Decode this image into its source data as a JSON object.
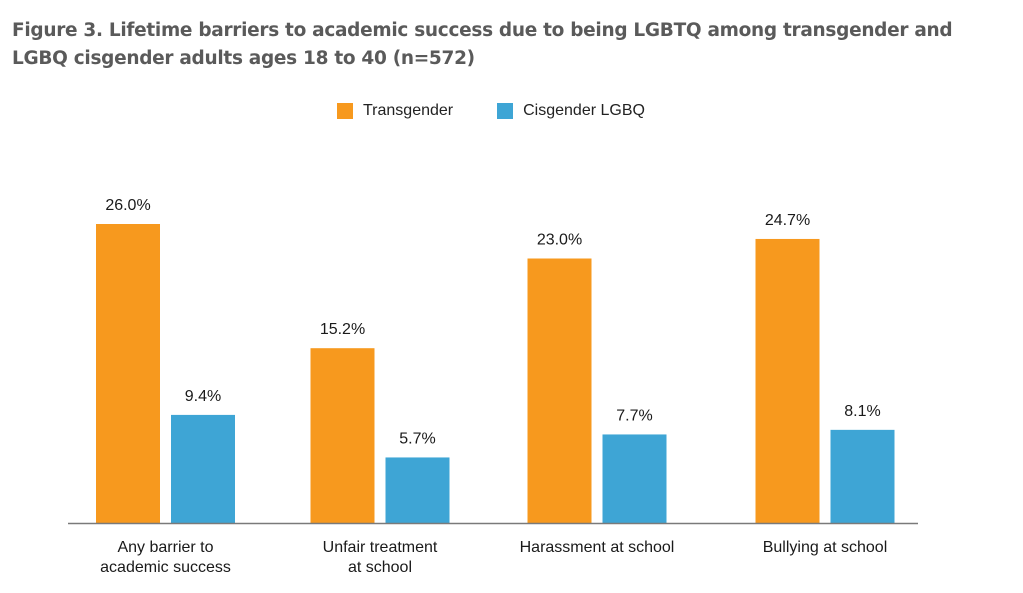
{
  "title": "Figure 3. Lifetime barriers to academic success due to being LGBTQ among transgender and LGBQ cisgender adults ages 18 to 40 (n=572)",
  "chart_data": {
    "type": "bar",
    "title": "Figure 3. Lifetime barriers to academic success due to being LGBTQ among transgender and LGBQ cisgender adults ages 18 to 40 (n=572)",
    "xlabel": "",
    "ylabel": "",
    "ylim": [
      0,
      30
    ],
    "grid": false,
    "legend": "top-center",
    "categories": [
      [
        "Any barrier to",
        "academic success"
      ],
      [
        "Unfair treatment",
        "at school"
      ],
      [
        "Harassment at school"
      ],
      [
        "Bullying at school"
      ]
    ],
    "series": [
      {
        "name": "Transgender",
        "color": "#f7991e",
        "values": [
          26.0,
          15.2,
          23.0,
          24.7
        ],
        "labels": [
          "26.0%",
          "15.2%",
          "23.0%",
          "24.7%"
        ]
      },
      {
        "name": "Cisgender LGBQ",
        "color": "#3ea5d5",
        "values": [
          9.4,
          5.7,
          7.7,
          8.1
        ],
        "labels": [
          "9.4%",
          "5.7%",
          "7.7%",
          "8.1%"
        ]
      }
    ]
  }
}
